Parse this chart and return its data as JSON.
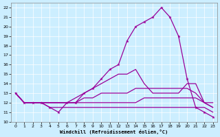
{
  "xlabel": "Windchill (Refroidissement éolien,°C)",
  "bg_color": "#cceeff",
  "line_color": "#990099",
  "x": [
    0,
    1,
    2,
    3,
    4,
    5,
    6,
    7,
    8,
    9,
    10,
    11,
    12,
    13,
    14,
    15,
    16,
    17,
    18,
    19,
    20,
    21,
    22,
    23
  ],
  "series_main": [
    13,
    12,
    12,
    12,
    11.5,
    11,
    12,
    12,
    13,
    13.5,
    14.5,
    15.5,
    16,
    18.5,
    20,
    20.5,
    21,
    22,
    21,
    19,
    14.5,
    11.5,
    11,
    10.5
  ],
  "series_upper": [
    13,
    12,
    12,
    12,
    12,
    12,
    12,
    12.5,
    13,
    13.5,
    14,
    14.5,
    15,
    15,
    15.5,
    14,
    13,
    13,
    13,
    13,
    14,
    14,
    12,
    11.5
  ],
  "series_mid1": [
    13,
    12,
    12,
    12,
    12,
    12,
    12,
    12,
    12.5,
    12.5,
    13,
    13,
    13,
    13,
    13.5,
    13.5,
    13.5,
    13.5,
    13.5,
    13.5,
    13.5,
    13,
    12,
    12
  ],
  "series_mid2": [
    13,
    12,
    12,
    12,
    12,
    12,
    12,
    12,
    12,
    12,
    12,
    12,
    12,
    12,
    12,
    12.5,
    12.5,
    12.5,
    12.5,
    12.5,
    12.5,
    12.5,
    12,
    11.5
  ],
  "series_low": [
    13,
    12,
    12,
    12,
    11.5,
    11.5,
    11.5,
    11.5,
    11.5,
    11.5,
    11.5,
    11.5,
    11.5,
    11.5,
    11.5,
    11.5,
    11.5,
    11.5,
    11.5,
    11.5,
    11.5,
    11.5,
    11.5,
    11
  ],
  "ylim": [
    10,
    22.5
  ],
  "yticks": [
    10,
    11,
    12,
    13,
    14,
    15,
    16,
    17,
    18,
    19,
    20,
    21,
    22
  ],
  "xticks": [
    0,
    1,
    2,
    3,
    4,
    5,
    6,
    7,
    8,
    9,
    10,
    11,
    12,
    13,
    14,
    15,
    16,
    17,
    18,
    19,
    20,
    21,
    22,
    23
  ]
}
